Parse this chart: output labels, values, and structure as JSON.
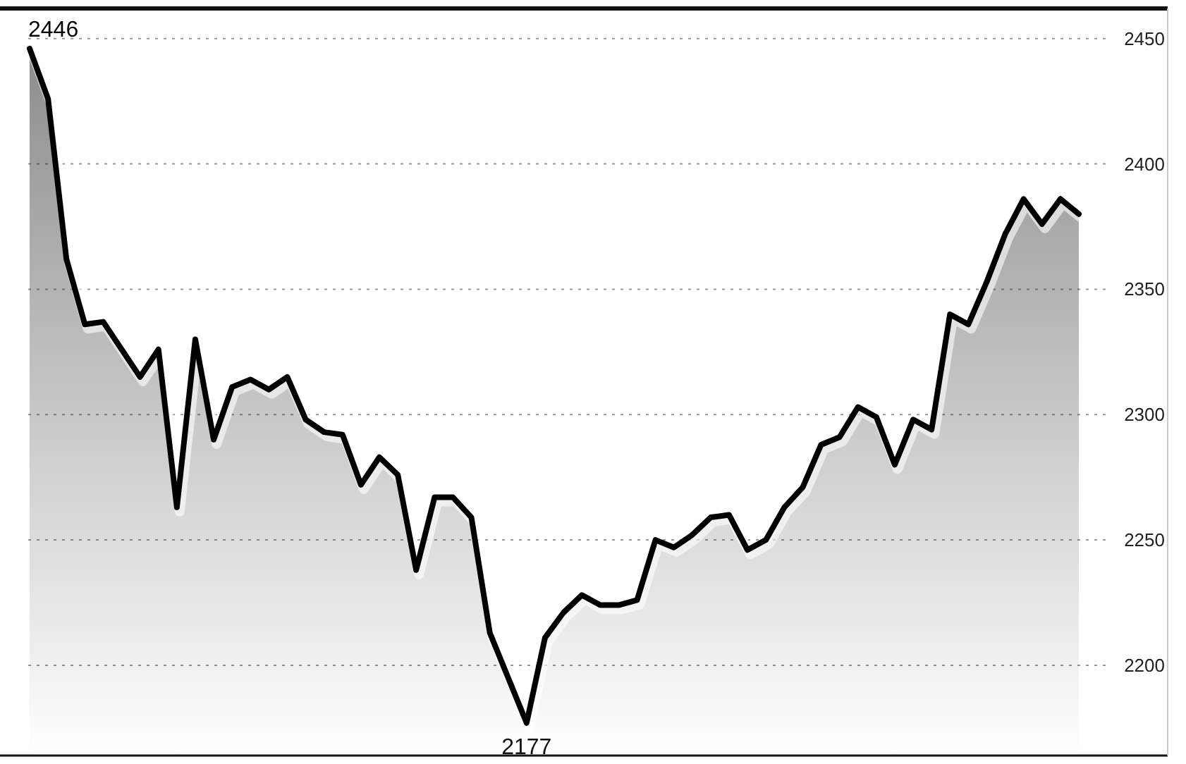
{
  "chart_data": {
    "type": "area",
    "categories": [
      null,
      null,
      null,
      null,
      null,
      null,
      null,
      null,
      null,
      null,
      null,
      null,
      null,
      null,
      null,
      null,
      null,
      null,
      null,
      null,
      null,
      null,
      null,
      null,
      null,
      null,
      null,
      null,
      null,
      null,
      null,
      null,
      null,
      null,
      null,
      null,
      null,
      null,
      null,
      null,
      null,
      null,
      null,
      null,
      null,
      null,
      null,
      null,
      null,
      null,
      null,
      null,
      null,
      null,
      null,
      null,
      null,
      null
    ],
    "series": [
      {
        "color": "#000000",
        "values": [
          2446,
          2426,
          2362,
          2336,
          2337,
          2326,
          2315,
          2326,
          2263,
          2330,
          2290,
          2311,
          2314,
          2310,
          2315,
          2298,
          2293,
          2292,
          2272,
          2283,
          2276,
          2238,
          2267,
          2267,
          2259,
          2213,
          2195,
          2177,
          2211,
          2221,
          2228,
          2224,
          2224,
          2226,
          2250,
          2247,
          2252,
          2259,
          2260,
          2246,
          2250,
          2263,
          2271,
          2288,
          2291,
          2303,
          2299,
          2280,
          2298,
          2294,
          2340,
          2336,
          2353,
          2372,
          2386,
          2376,
          2386,
          2380
        ]
      }
    ],
    "annotations": [
      "2446",
      "2177"
    ],
    "ylim": [
      2164,
      2462
    ],
    "yticks": [
      2200,
      2250,
      2300,
      2350,
      2400,
      2450
    ],
    "grid": "y"
  }
}
